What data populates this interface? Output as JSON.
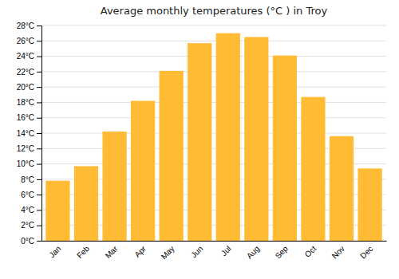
{
  "chart_data": {
    "type": "bar",
    "title": "Average monthly temperatures (°C ) in Troy",
    "categories": [
      "Jan",
      "Feb",
      "Mar",
      "Apr",
      "May",
      "Jun",
      "Jul",
      "Aug",
      "Sep",
      "Oct",
      "Nov",
      "Dec"
    ],
    "values": [
      7.8,
      9.7,
      14.2,
      18.2,
      22.1,
      25.7,
      27.0,
      26.5,
      24.1,
      18.7,
      13.6,
      9.4
    ],
    "color": "#FFBB33",
    "ylim": [
      0,
      28
    ],
    "yticks": [
      {
        "value": 0,
        "label": "0°C"
      },
      {
        "value": 2,
        "label": "2°C"
      },
      {
        "value": 4,
        "label": "4°C"
      },
      {
        "value": 6,
        "label": "6°C"
      },
      {
        "value": 8,
        "label": "8°C"
      },
      {
        "value": 10,
        "label": "10°C"
      },
      {
        "value": 12,
        "label": "12°C"
      },
      {
        "value": 14,
        "label": "14°C"
      },
      {
        "value": 16,
        "label": "16°C"
      },
      {
        "value": 18,
        "label": "18°C"
      },
      {
        "value": 20,
        "label": "20°C"
      },
      {
        "value": 22,
        "label": "22°C"
      },
      {
        "value": 24,
        "label": "24°C"
      },
      {
        "value": 26,
        "label": "26°C"
      },
      {
        "value": 28,
        "label": "28°C"
      }
    ],
    "grid": true
  }
}
